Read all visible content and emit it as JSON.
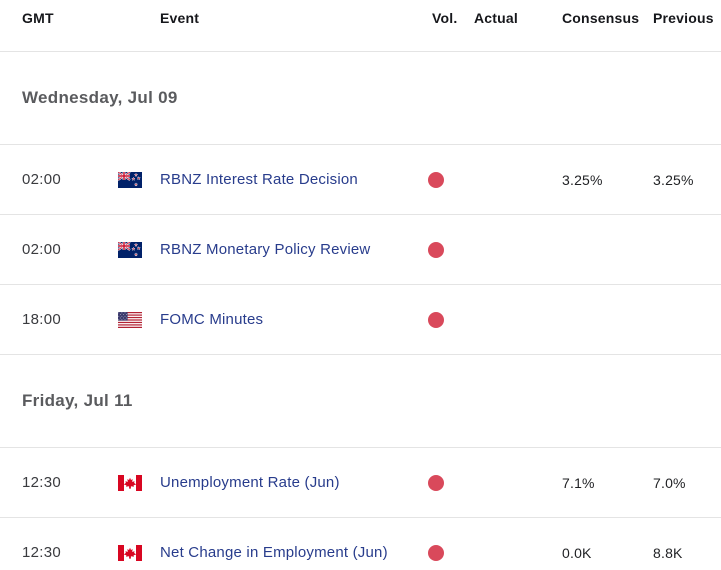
{
  "table": {
    "columns": [
      {
        "key": "gmt",
        "label": "GMT"
      },
      {
        "key": "event",
        "label": "Event"
      },
      {
        "key": "vol",
        "label": "Vol."
      },
      {
        "key": "actual",
        "label": "Actual"
      },
      {
        "key": "consensus",
        "label": "Consensus"
      },
      {
        "key": "previous",
        "label": "Previous"
      }
    ],
    "sections": [
      {
        "date_label": "Wednesday, Jul 09",
        "rows": [
          {
            "gmt": "02:00",
            "flag": "new-zealand",
            "event": "RBNZ Interest Rate Decision",
            "vol": "high",
            "actual": "",
            "consensus": "3.25%",
            "previous": "3.25%"
          },
          {
            "gmt": "02:00",
            "flag": "new-zealand",
            "event": "RBNZ Monetary Policy Review",
            "vol": "high",
            "actual": "",
            "consensus": "",
            "previous": ""
          },
          {
            "gmt": "18:00",
            "flag": "united-states",
            "event": "FOMC Minutes",
            "vol": "high",
            "actual": "",
            "consensus": "",
            "previous": ""
          }
        ]
      },
      {
        "date_label": "Friday, Jul 11",
        "rows": [
          {
            "gmt": "12:30",
            "flag": "canada",
            "event": "Unemployment Rate (Jun)",
            "vol": "high",
            "actual": "",
            "consensus": "7.1%",
            "previous": "7.0%"
          },
          {
            "gmt": "12:30",
            "flag": "canada",
            "event": "Net Change in Employment (Jun)",
            "vol": "high",
            "actual": "",
            "consensus": "0.0K",
            "previous": "8.8K"
          }
        ]
      }
    ]
  },
  "colors": {
    "event_link": "#283C8C",
    "volatility_high_dot": "#D9495B",
    "divider": "#E4E4E4",
    "header_text": "#16171B",
    "date_header_text": "#5A5B5E",
    "time_text": "#3A3B3F",
    "value_text": "#1F2023",
    "background": "#FFFFFF"
  }
}
